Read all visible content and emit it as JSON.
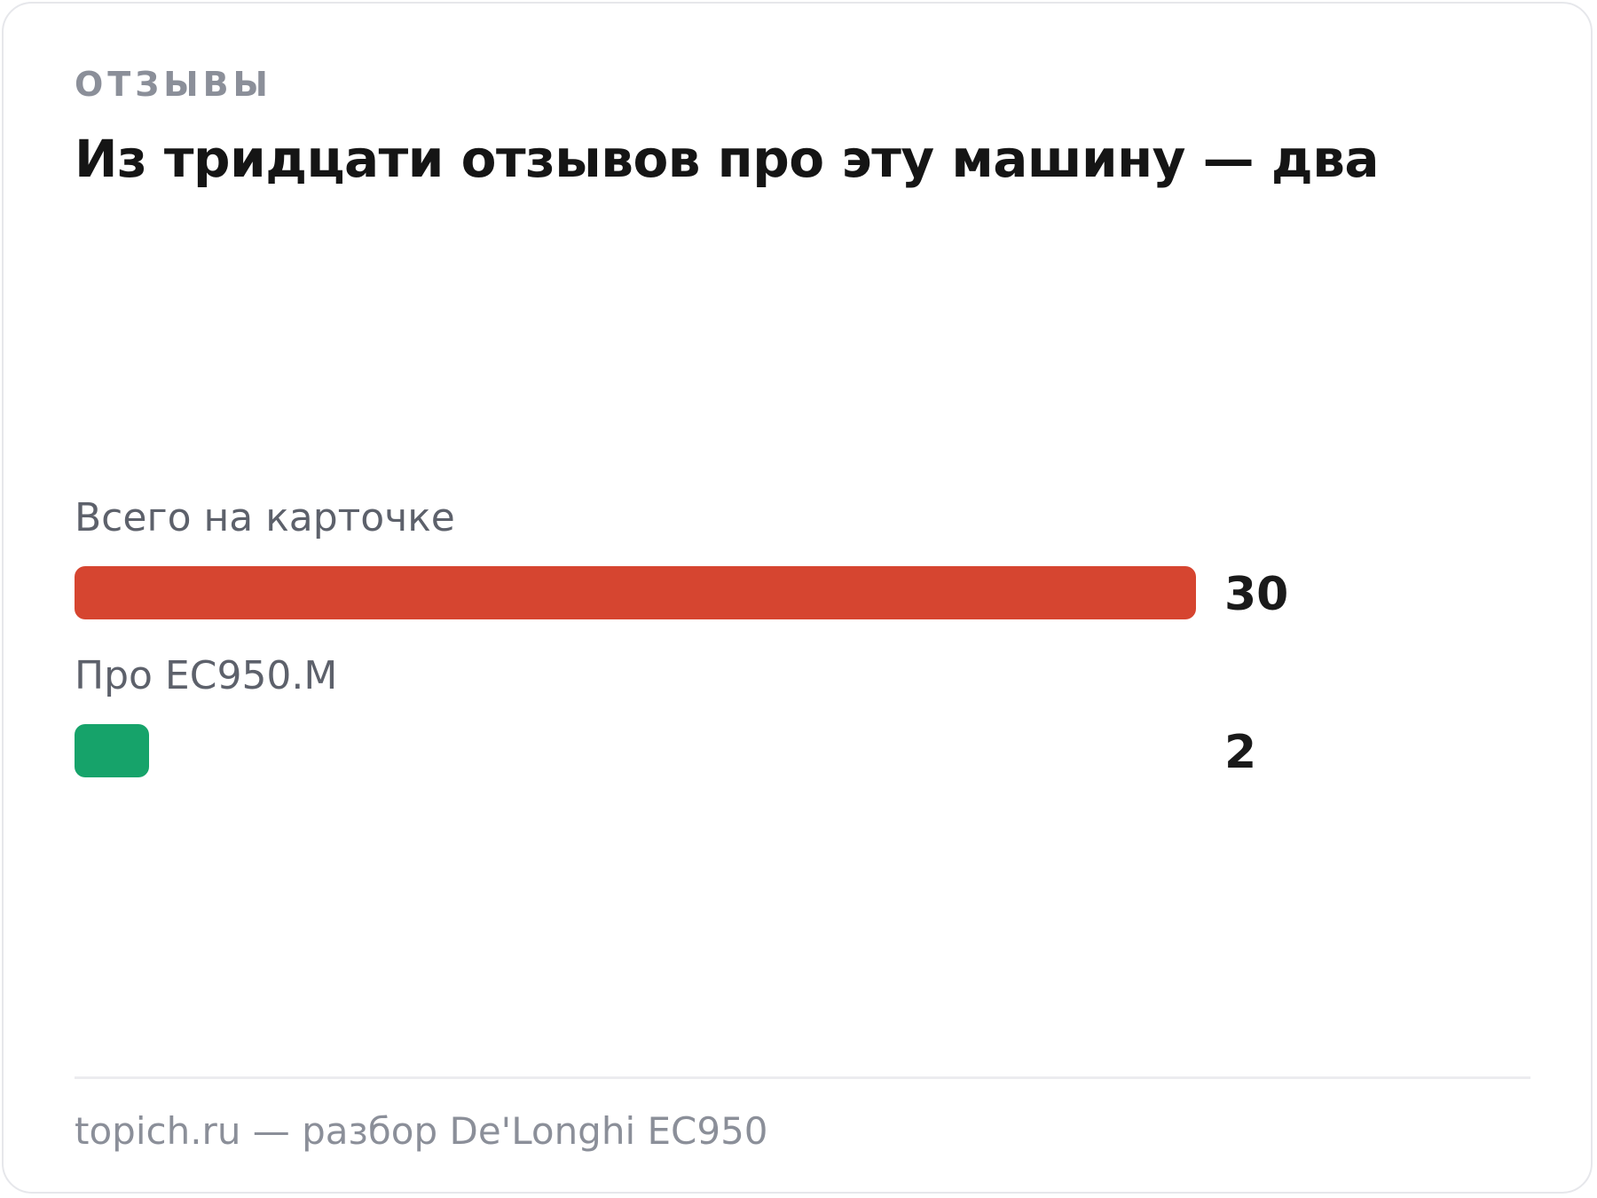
{
  "header": {
    "kicker": "ОТЗЫВЫ",
    "title": "Из тридцати отзывов про эту машину — два"
  },
  "chart_data": {
    "type": "bar",
    "orientation": "horizontal",
    "categories": [
      "Всего на карточке",
      "Про EC950.M"
    ],
    "values": [
      30,
      2
    ],
    "value_labels": [
      "30",
      "2"
    ],
    "colors": [
      "#d64530",
      "#16a36a"
    ],
    "xlim": [
      0,
      30
    ],
    "grid": false,
    "legend": "none"
  },
  "footer": {
    "text": "topich.ru — разбор De'Longhi EC950"
  }
}
